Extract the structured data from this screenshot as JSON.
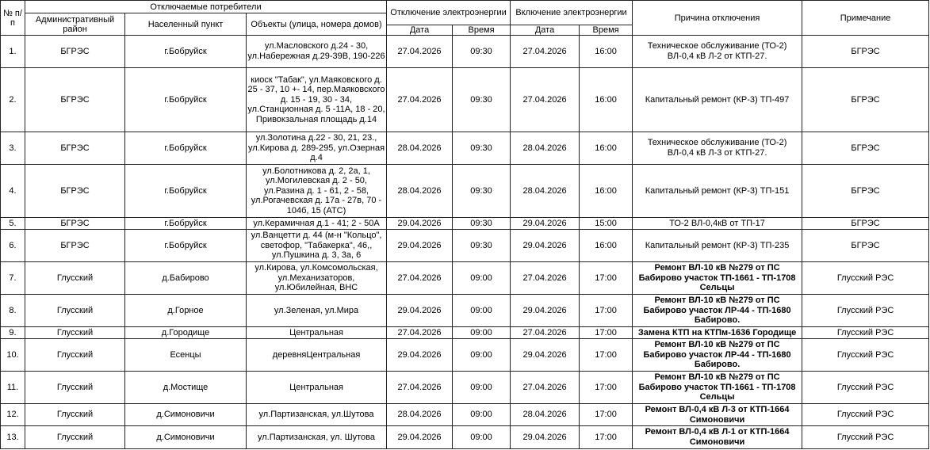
{
  "header": {
    "num": "№ п/п",
    "consumers": "Отключаемые потребители",
    "district": "Административный район",
    "locality": "Населенный пункт",
    "objects": "Объекты (улица, номера домов)",
    "off": "Отключение электроэнергии",
    "on": "Включение электроэнергии",
    "date": "Дата",
    "time": "Время",
    "reason": "Причина отключения",
    "note": "Примечание"
  },
  "rows": [
    {
      "num": "1.",
      "district": "БГРЭС",
      "locality": "г.Бобруйск",
      "objects": "ул.Масловского д.24 - 30, ул.Набережная д.29-39В, 190-226",
      "off_date": "27.04.2026",
      "off_time": "09:30",
      "on_date": "27.04.2026",
      "on_time": "16:00",
      "reason": "Техническое обслуживание (ТО-2) ВЛ-0,4 кВ Л-2 от КТП-27.",
      "note": "БГРЭС",
      "bold": false
    },
    {
      "num": "2.",
      "district": "БГРЭС",
      "locality": "г.Бобруйск",
      "objects": "киоск \"Табак\", ул.Маяковского д. 25 - 37, 10 +- 14, пер.Маяковского д. 15 - 19, 30 - 34, ул.Станционная д. 5 -11А, 18 - 20,  Привокзальная площадь д.14",
      "off_date": "27.04.2026",
      "off_time": "09:30",
      "on_date": "27.04.2026",
      "on_time": "16:00",
      "reason": "Капитальный ремонт (КР-3)  ТП-497",
      "note": "БГРЭС",
      "bold": false
    },
    {
      "num": "3.",
      "district": "БГРЭС",
      "locality": "г.Бобруйск",
      "objects": "ул.Золотина д.22 - 30, 21, 23., ул.Кирова д. 289-295, ул.Озерная д.4",
      "off_date": "28.04.2026",
      "off_time": "09:30",
      "on_date": "28.04.2026",
      "on_time": "16:00",
      "reason": "Техническое обслуживание (ТО-2) ВЛ-0,4 кВ Л-3 от КТП-27.",
      "note": "БГРЭС",
      "bold": false
    },
    {
      "num": "4.",
      "district": "БГРЭС",
      "locality": "г.Бобруйск",
      "objects": "ул.Болотникова д. 2, 2а, 1, ул.Могилевская д. 2 - 50, ул.Разина д. 1 - 61, 2 - 58, ул.Рогачевская д. 17а - 27в, 70 - 104б, 15 (АТС)",
      "off_date": "28.04.2026",
      "off_time": "09:30",
      "on_date": "28.04.2026",
      "on_time": "16:00",
      "reason": "Капитальный ремонт (КР-3) ТП-151",
      "note": "БГРЭС",
      "bold": false
    },
    {
      "num": "5.",
      "district": "БГРЭС",
      "locality": "г.Бобруйск",
      "objects": "ул.Керамичная д.1 - 41; 2 - 50А",
      "off_date": "29.04.2026",
      "off_time": "09:30",
      "on_date": "29.04.2026",
      "on_time": "15:00",
      "reason": "ТО-2 ВЛ-0,4кВ от ТП-17",
      "note": "БГРЭС",
      "bold": false
    },
    {
      "num": "6.",
      "district": "БГРЭС",
      "locality": "г.Бобруйск",
      "objects": "ул.Ванцетти д. 44 (м-н \"Кольцо\", светофор, \"Табакерка\", 46,, ул.Пушкина д. 3, 3а, 6",
      "off_date": "29.04.2026",
      "off_time": "09:30",
      "on_date": "29.04.2026",
      "on_time": "16:00",
      "reason": "Капитальный ремонт (КР-3) ТП-235",
      "note": "БГРЭС",
      "bold": false
    },
    {
      "num": "7.",
      "district": "Глусский",
      "locality": "д.Бабирово",
      "objects": "ул.Кирова, ул.Комсомольская, ул.Механизаторов, ул.Юбилейная, ВНС",
      "off_date": "27.04.2026",
      "off_time": "09:00",
      "on_date": "27.04.2026",
      "on_time": "17:00",
      "reason": "Ремонт ВЛ-10 кВ №279 от ПС Бабирово участок ТП-1661 - ТП-1708 Сельцы",
      "note": "Глусский РЭС",
      "bold": true
    },
    {
      "num": "8.",
      "district": "Глусский",
      "locality": "д.Горное",
      "objects": "ул.Зеленая, ул.Мира",
      "off_date": "29.04.2026",
      "off_time": "09:00",
      "on_date": "29.04.2026",
      "on_time": "17:00",
      "reason": "Ремонт ВЛ-10 кВ №279 от ПС Бабирово участок ЛР-44  - ТП-1680 Бабирово.",
      "note": "Глусский РЭС",
      "bold": true
    },
    {
      "num": "9.",
      "district": "Глусский",
      "locality": "д.Городище",
      "objects": "Центральная",
      "off_date": "27.04.2026",
      "off_time": "09:00",
      "on_date": "27.04.2026",
      "on_time": "17:00",
      "reason": "Замена КТП на КТПм-1636 Городище",
      "note": "Глусский РЭС",
      "bold": true
    },
    {
      "num": "10.",
      "district": "Глусский",
      "locality": "Есенцы",
      "objects": "деревняЦентральная",
      "off_date": "29.04.2026",
      "off_time": "09:00",
      "on_date": "29.04.2026",
      "on_time": "17:00",
      "reason": "Ремонт ВЛ-10 кВ №279 от ПС Бабирово участок ЛР-44  - ТП-1680 Бабирово.",
      "note": "Глусский РЭС",
      "bold": true
    },
    {
      "num": "11.",
      "district": "Глусский",
      "locality": "д.Мостище",
      "objects": "Центральная",
      "off_date": "27.04.2026",
      "off_time": "09:00",
      "on_date": "27.04.2026",
      "on_time": "17:00",
      "reason": "Ремонт ВЛ-10 кВ №279 от ПС Бабирово участок ТП-1661 - ТП-1708 Сельцы",
      "note": "Глусский РЭС",
      "bold": true
    },
    {
      "num": "12.",
      "district": "Глусский",
      "locality": "д.Симоновичи",
      "objects": "ул.Партизанская, ул.Шутова",
      "off_date": "28.04.2026",
      "off_time": "09:00",
      "on_date": "28.04.2026",
      "on_time": "17:00",
      "reason": "Ремонт ВЛ-0,4 кВ Л-3 от КТП-1664 Симоновичи",
      "note": "Глусский РЭС",
      "bold": true
    },
    {
      "num": "13.",
      "district": "Глусский",
      "locality": "д.Симоновичи",
      "objects": "ул.Партизанская, ул. Шутова",
      "off_date": "29.04.2026",
      "off_time": "09:00",
      "on_date": "29.04.2026",
      "on_time": "17:00",
      "reason": "Ремонт ВЛ-0,4 кВ Л-1 от КТП-1664 Симоновичи",
      "note": "Глусский РЭС",
      "bold": true
    }
  ]
}
